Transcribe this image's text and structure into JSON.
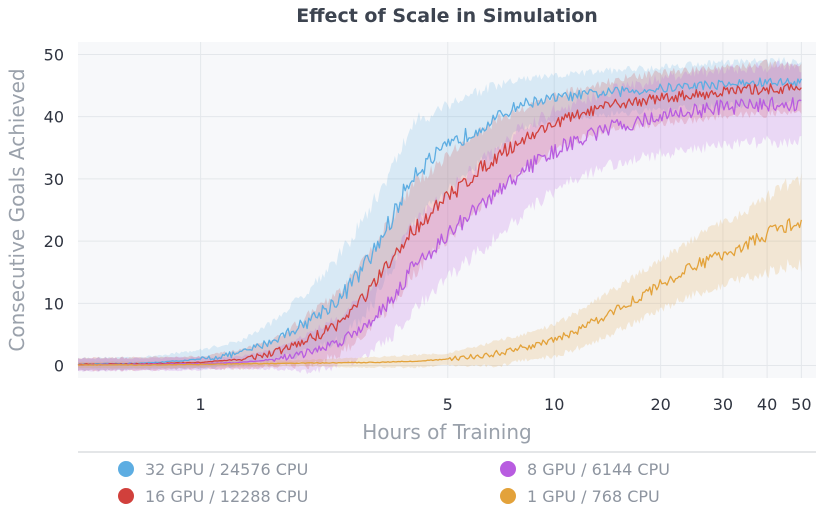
{
  "chart_data": {
    "type": "line",
    "title": "Effect of Scale in Simulation",
    "xlabel": "Hours of Training",
    "ylabel": "Consecutive Goals Achieved",
    "xscale": "log",
    "xlim": [
      0.45,
      55
    ],
    "ylim": [
      -2,
      52
    ],
    "xticks": [
      1,
      5,
      10,
      20,
      30,
      40,
      50
    ],
    "xtick_labels": [
      "1",
      "5",
      "10",
      "20",
      "30",
      "40",
      "50"
    ],
    "yticks": [
      0,
      10,
      20,
      30,
      40,
      50
    ],
    "ytick_labels": [
      "0",
      "10",
      "20",
      "30",
      "40",
      "50"
    ],
    "grid": true,
    "legend_position": "bottom",
    "series": [
      {
        "name": "32 GPU / 24576 CPU",
        "color": "#5dade2",
        "x": [
          0.45,
          0.7,
          1,
          1.3,
          1.6,
          2,
          2.5,
          3,
          3.5,
          4,
          5,
          6,
          7,
          8,
          10,
          12,
          15,
          20,
          25,
          30,
          40,
          50
        ],
        "y": [
          0.2,
          0.4,
          1.0,
          2.0,
          4.0,
          7.0,
          11.0,
          17.0,
          24.0,
          31.0,
          35.0,
          38.0,
          40.0,
          42.0,
          43.0,
          43.5,
          44.0,
          44.5,
          45.0,
          45.2,
          45.5,
          45.5
        ],
        "band": [
          1,
          1,
          1.5,
          2,
          3,
          5,
          7,
          8,
          8,
          8,
          7,
          6,
          5,
          4,
          3.5,
          3.5,
          3.5,
          3.5,
          3.5,
          3.5,
          3.5,
          3.5
        ]
      },
      {
        "name": "16 GPU / 12288 CPU",
        "color": "#d1403c",
        "x": [
          0.45,
          0.7,
          1,
          1.3,
          1.6,
          2,
          2.5,
          3,
          3.5,
          4,
          5,
          6,
          7,
          8,
          10,
          12,
          15,
          20,
          25,
          30,
          40,
          50
        ],
        "y": [
          0.2,
          0.3,
          0.5,
          1.0,
          2.0,
          4.0,
          7.0,
          12.0,
          17.0,
          22.0,
          27.0,
          31.0,
          34.0,
          36.0,
          39.0,
          40.5,
          42.0,
          43.0,
          43.5,
          44.0,
          44.5,
          44.5
        ],
        "band": [
          1,
          1,
          1,
          1.5,
          2,
          4,
          5,
          6,
          7,
          7,
          7,
          6,
          6,
          5,
          4.5,
          4,
          4,
          4,
          4,
          4,
          4,
          4
        ]
      },
      {
        "name": "8 GPU / 6144 CPU",
        "color": "#b85ce0",
        "x": [
          0.45,
          0.7,
          1,
          1.3,
          1.6,
          2,
          2.5,
          3,
          3.5,
          4,
          5,
          6,
          7,
          8,
          10,
          12,
          15,
          20,
          25,
          30,
          40,
          50
        ],
        "y": [
          0.1,
          0.2,
          0.3,
          0.5,
          1.0,
          2.0,
          4.0,
          7.0,
          11.0,
          16.0,
          21.0,
          25.0,
          28.0,
          31.0,
          34.5,
          36.5,
          38.5,
          40.0,
          41.0,
          41.5,
          42.0,
          42.0
        ],
        "band": [
          1,
          1,
          1,
          1,
          1.5,
          3,
          4,
          5,
          6,
          7,
          7,
          7,
          7,
          7,
          6.5,
          6,
          6,
          6,
          6,
          6,
          6,
          6
        ]
      },
      {
        "name": "1 GPU / 768 CPU",
        "color": "#e3a23a",
        "x": [
          0.45,
          0.7,
          1,
          1.5,
          2,
          3,
          4,
          5,
          6,
          7,
          8,
          10,
          12,
          15,
          20,
          25,
          30,
          35,
          40,
          45,
          50
        ],
        "y": [
          0.1,
          0.1,
          0.2,
          0.3,
          0.4,
          0.5,
          0.7,
          1.0,
          1.5,
          2.0,
          2.8,
          4.0,
          6.0,
          9.0,
          13.0,
          16.0,
          18.0,
          19.5,
          21.0,
          22.5,
          23.0
        ],
        "band": [
          0.5,
          0.5,
          0.5,
          0.5,
          0.5,
          0.8,
          1,
          1,
          1.5,
          2,
          2,
          2.5,
          3,
          3.5,
          4,
          4.5,
          5,
          5.5,
          6,
          6.5,
          7
        ]
      }
    ]
  }
}
